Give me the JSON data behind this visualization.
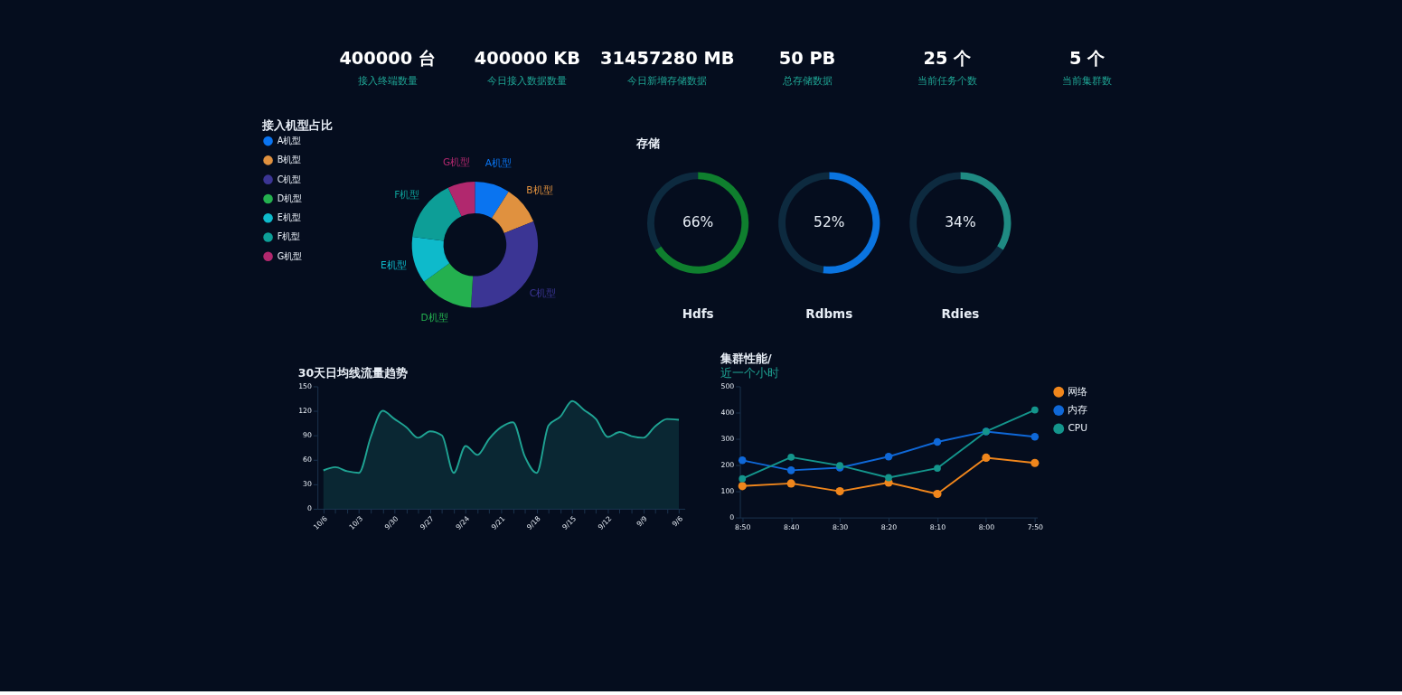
{
  "chart_data": [
    {
      "type": "other",
      "annotations": [
        "400000 台",
        "接入终端数量",
        "400000 KB",
        "今日接入数据数量",
        "31457280 MB",
        "今日新增存储数据",
        "50 PB",
        "总存储数据",
        "25 个",
        "当前任务个数",
        "5 个",
        "当前集群数"
      ]
    },
    {
      "type": "donut",
      "title": "接入机型占比",
      "categories": [
        "A机型",
        "B机型",
        "C机型",
        "D机型",
        "E机型",
        "F机型",
        "G机型"
      ],
      "values": [
        9,
        10,
        32,
        14,
        12,
        16,
        7
      ],
      "colors": [
        "#0a74f0",
        "#e0913f",
        "#3b3594",
        "#24b04f",
        "#0ebacb",
        "#0d9e97",
        "#b1286e"
      ],
      "legend": "left"
    },
    {
      "type": "donut",
      "title": "存储",
      "xlabel": "Hdfs",
      "categories": [
        null,
        null
      ],
      "values": [
        66,
        34
      ],
      "colors": [
        "#0f7f2e",
        "#0d2a3f"
      ],
      "value_labels": [
        "66%",
        null
      ]
    },
    {
      "type": "donut",
      "xlabel": "Rdbms",
      "categories": [
        null,
        null
      ],
      "values": [
        52,
        48
      ],
      "colors": [
        "#0a74e0",
        "#0d2a3f"
      ],
      "value_labels": [
        "52%",
        null
      ]
    },
    {
      "type": "donut",
      "xlabel": "Rdies",
      "categories": [
        null,
        null
      ],
      "values": [
        34,
        66
      ],
      "colors": [
        "#1f8a82",
        "#0d2a3f"
      ],
      "value_labels": [
        "34%",
        null
      ]
    },
    {
      "type": "area",
      "title": "30天日均线流量趋势",
      "categories": [
        "10/6",
        null,
        null,
        "10/3",
        null,
        null,
        "9/30",
        null,
        null,
        "9/27",
        null,
        null,
        "9/24",
        null,
        null,
        "9/21",
        null,
        null,
        "9/18",
        null,
        null,
        "9/15",
        null,
        null,
        "9/12",
        null,
        null,
        "9/9",
        null,
        null,
        "9/6"
      ],
      "series": [
        {
          "color": "#1fa393",
          "values": [
            47,
            51,
            46,
            44,
            88,
            120,
            110,
            100,
            87,
            95,
            90,
            44,
            77,
            66,
            86,
            100,
            106,
            64,
            44,
            102,
            113,
            132,
            121,
            110,
            88,
            94,
            89,
            87,
            101,
            110,
            109
          ]
        }
      ],
      "ylim": [
        0,
        150
      ],
      "yticks": [
        0,
        30,
        60,
        90,
        120,
        150
      ]
    },
    {
      "type": "line",
      "title": "集群性能/",
      "subtitle": "近一个小时",
      "categories": [
        "8:50",
        "8:40",
        "8:30",
        "8:20",
        "8:10",
        "8:00",
        "7:50"
      ],
      "series": [
        {
          "name": "网络",
          "color": "#f0861c",
          "values": [
            120,
            130,
            100,
            133,
            90,
            228,
            208
          ]
        },
        {
          "name": "内存",
          "color": "#0f68d8",
          "values": [
            218,
            180,
            190,
            232,
            288,
            328,
            308
          ]
        },
        {
          "name": "CPU",
          "color": "#14958c",
          "values": [
            148,
            230,
            198,
            152,
            188,
            328,
            410
          ]
        }
      ],
      "ylim": [
        0,
        500
      ],
      "yticks": [
        0,
        100,
        200,
        300,
        400,
        500
      ],
      "legend": "right",
      "marker": "circle"
    }
  ]
}
